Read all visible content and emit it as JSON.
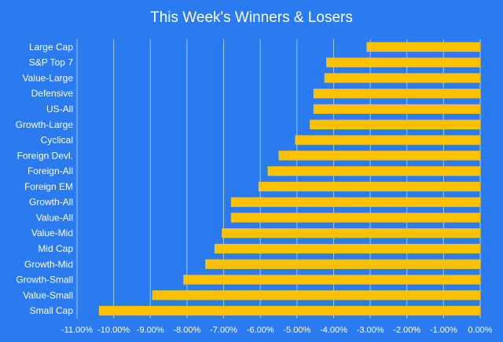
{
  "colors": {
    "background": "#2b7bf0",
    "bar": "#ffc000",
    "text": "#ffffff",
    "gridline": "#a9c8f7"
  },
  "chart_data": {
    "type": "bar",
    "orientation": "horizontal",
    "title": "This Week's Winners & Losers",
    "xlabel": "",
    "ylabel": "",
    "xlim": [
      -11,
      0
    ],
    "grid": true,
    "legend": "none",
    "x_ticks": [
      -11,
      -10,
      -9,
      -8,
      -7,
      -6,
      -5,
      -4,
      -3,
      -2,
      -1,
      0
    ],
    "x_tick_labels": [
      "-11.00%",
      "-10.00%",
      "-9.00%",
      "-8.00%",
      "-7.00%",
      "-6.00%",
      "-5.00%",
      "-4.00%",
      "-3.00%",
      "-2.00%",
      "-1.00%",
      "0.00%"
    ],
    "categories": [
      "Large Cap",
      "S&P Top 7",
      "Value-Large",
      "Defensive",
      "US-All",
      "Growth-Large",
      "Cyclical",
      "Foreign Devl.",
      "Foreign-All",
      "Foreign EM",
      "Growth-All",
      "Value-All",
      "Value-Mid",
      "Mid Cap",
      "Growth-Mid",
      "Growth-Small",
      "Value-Small",
      "Small Cap"
    ],
    "values": [
      -3.1,
      -4.2,
      -4.25,
      -4.55,
      -4.55,
      -4.65,
      -5.05,
      -5.5,
      -5.8,
      -6.05,
      -6.8,
      -6.8,
      -7.05,
      -7.25,
      -7.5,
      -8.1,
      -8.95,
      -10.4
    ]
  }
}
